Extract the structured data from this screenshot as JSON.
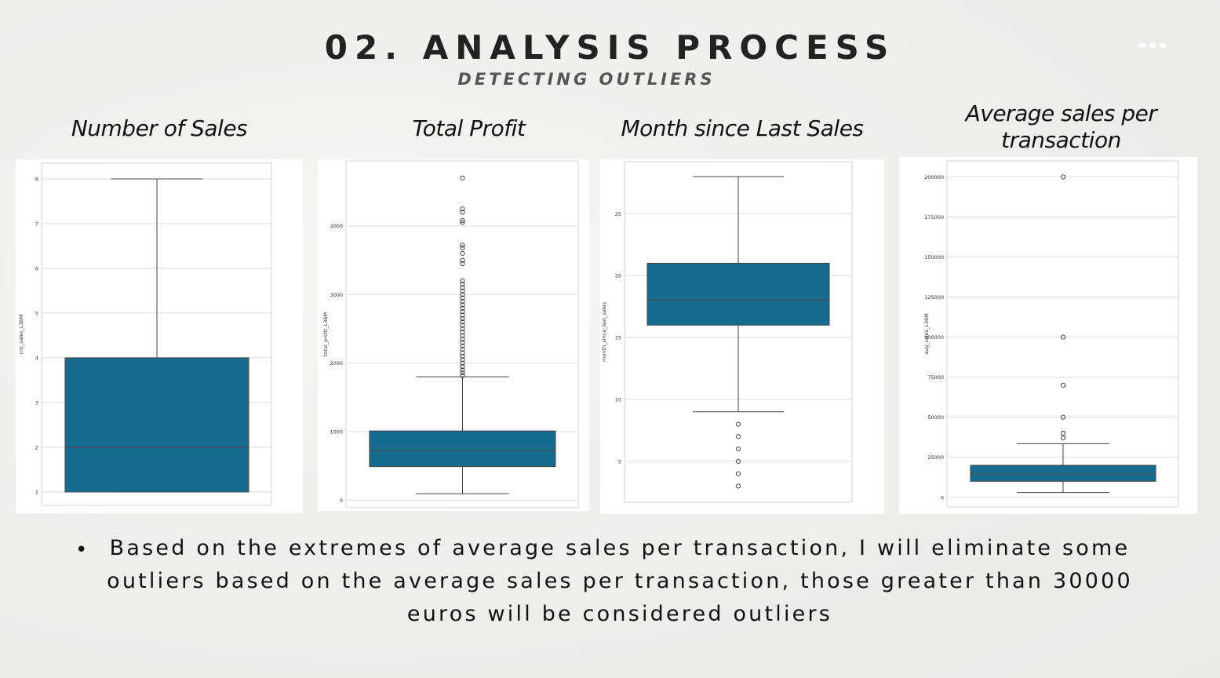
{
  "header": {
    "title": "02. ANALYSIS PROCESS",
    "subtitle": "DETECTING OUTLIERS"
  },
  "chart_data": [
    {
      "type": "box",
      "title": "Number of Sales",
      "ylabel": "cnt_sales_L36M",
      "ylim": [
        0.7,
        8.35
      ],
      "yticks": [
        1,
        2,
        3,
        4,
        5,
        6,
        7,
        8
      ],
      "box": {
        "min": 1,
        "q1": 1,
        "median": 2,
        "q3": 4,
        "max": 8
      },
      "outliers": [],
      "grid": true,
      "color": "#176b8f"
    },
    {
      "type": "box",
      "title": "Total Profit",
      "ylabel": "total_profit_L36M",
      "ylim": [
        -110,
        4950
      ],
      "yticks": [
        0,
        1000,
        2000,
        3000,
        4000
      ],
      "box": {
        "min": 95,
        "q1": 490,
        "median": 720,
        "q3": 1010,
        "max": 1800
      },
      "outliers": [
        1820,
        1860,
        1900,
        1950,
        2000,
        2050,
        2100,
        2150,
        2200,
        2250,
        2300,
        2350,
        2400,
        2450,
        2500,
        2550,
        2600,
        2650,
        2700,
        2750,
        2800,
        2850,
        2900,
        2950,
        3000,
        3050,
        3100,
        3150,
        3200,
        3450,
        3500,
        3600,
        3680,
        3720,
        4050,
        4080,
        4200,
        4250,
        4700
      ],
      "grid": true,
      "color": "#176b8f"
    },
    {
      "type": "box",
      "title": "Month since Last Sales",
      "ylabel": "month_since_last_sales",
      "ylim": [
        1.7,
        29.2
      ],
      "yticks": [
        5,
        10,
        15,
        20,
        25
      ],
      "box": {
        "min": 9,
        "q1": 16,
        "median": 18,
        "q3": 21,
        "max": 28
      },
      "outliers": [
        3,
        4,
        5,
        6,
        7,
        8
      ],
      "grid": true,
      "color": "#176b8f"
    },
    {
      "type": "box",
      "title": "Average sales per transaction",
      "ylabel": "avg_sales_L36M",
      "ylim": [
        -6000,
        210000
      ],
      "yticks": [
        0,
        25000,
        50000,
        75000,
        100000,
        125000,
        150000,
        175000,
        200000
      ],
      "box": {
        "min": 3000,
        "q1": 10000,
        "median": 14500,
        "q3": 20000,
        "max": 33500
      },
      "outliers": [
        37000,
        40000,
        50000,
        70000,
        100000,
        200000
      ],
      "grid": true,
      "color": "#176b8f"
    }
  ],
  "body": {
    "bullet": "•",
    "text": "Based on the extremes of average sales per transaction, I will eliminate some outliers based on the average sales per transaction, those greater than 30000 euros will be considered outliers"
  },
  "colors": {
    "box": "#176b8f",
    "line": "#444444",
    "grid": "#dddddd",
    "title": "#222222"
  }
}
